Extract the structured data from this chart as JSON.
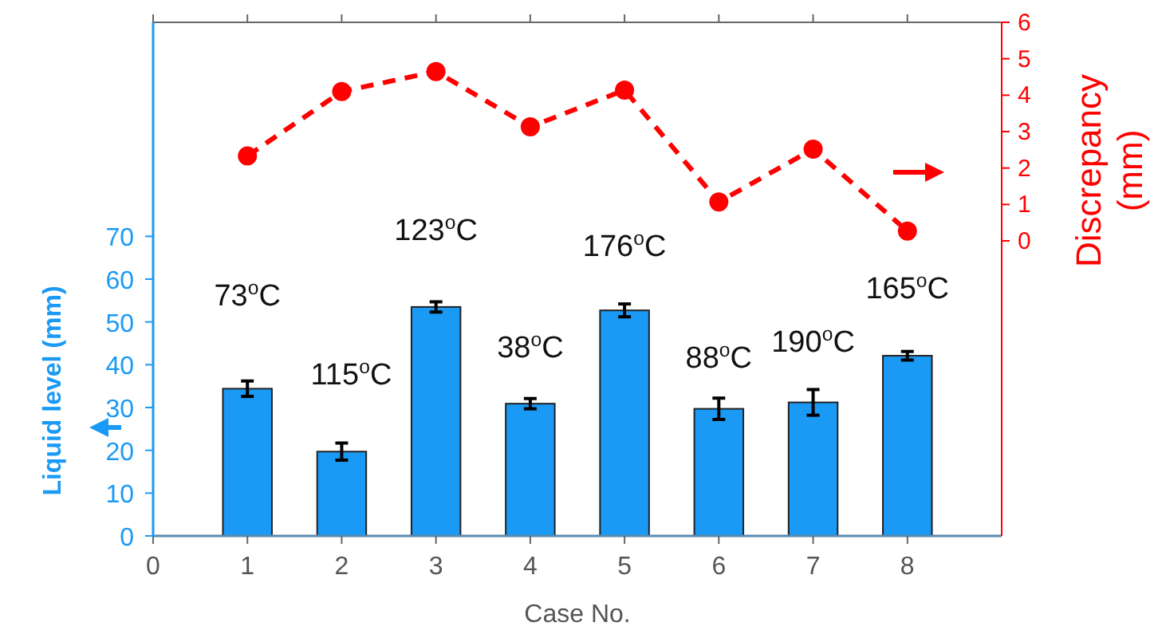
{
  "chart_data": {
    "type": "bar",
    "xlabel": "Case No.",
    "ylabel": "Liquid level (mm)",
    "y2label": "Discrepancy (mm)",
    "x": [
      1,
      2,
      3,
      4,
      5,
      6,
      7,
      8
    ],
    "xlim": [
      0,
      9
    ],
    "xticks": [
      0,
      1,
      2,
      3,
      4,
      5,
      6,
      7,
      8
    ],
    "ylim": [
      0,
      120
    ],
    "yticks": [
      0,
      10,
      20,
      30,
      40,
      50,
      60,
      70
    ],
    "y2lim": [
      -8.1,
      6
    ],
    "y2ticks": [
      0,
      1,
      2,
      3,
      4,
      5,
      6
    ],
    "series": [
      {
        "color": "#1a9af5",
        "values": [
          34.4,
          19.7,
          53.5,
          30.9,
          52.7,
          29.7,
          31.2,
          42.1
        ],
        "errors": [
          1.8,
          2,
          1.2,
          1.2,
          1.5,
          2.5,
          3,
          1
        ]
      },
      {
        "type": "line",
        "axis": "y2",
        "color": "#ff0000",
        "marker": "circle",
        "line_style": "dashed",
        "values": [
          2.33,
          4.1,
          4.65,
          3.13,
          4.14,
          1.07,
          2.52,
          0.27
        ]
      }
    ],
    "annotations": [
      "73$^{o}$C",
      "115$^{o}$C",
      "123$^{o}$C",
      "38$^{o}$C",
      "176$^{o}$C",
      "88$^{o}$C",
      "190$^{o}$C",
      "165$^{o}$C"
    ],
    "grid": false
  }
}
